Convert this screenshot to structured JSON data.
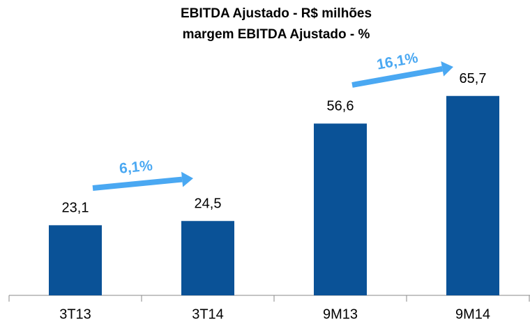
{
  "chart_data": {
    "type": "bar",
    "title": [
      "EBITDA Ajustado - R$ milhões",
      "margem EBITDA Ajustado - %"
    ],
    "categories": [
      "3T13",
      "3T14",
      "9M13",
      "9M14"
    ],
    "values": [
      23.1,
      24.5,
      56.6,
      65.7
    ],
    "value_labels": [
      "23,1",
      "24,5",
      "56,6",
      "65,7"
    ],
    "color": "#0a5297",
    "ylim": [
      0,
      70
    ],
    "annotations": [
      "6,1%",
      "16,1%"
    ],
    "annotation_color": "#4aa8f2"
  }
}
